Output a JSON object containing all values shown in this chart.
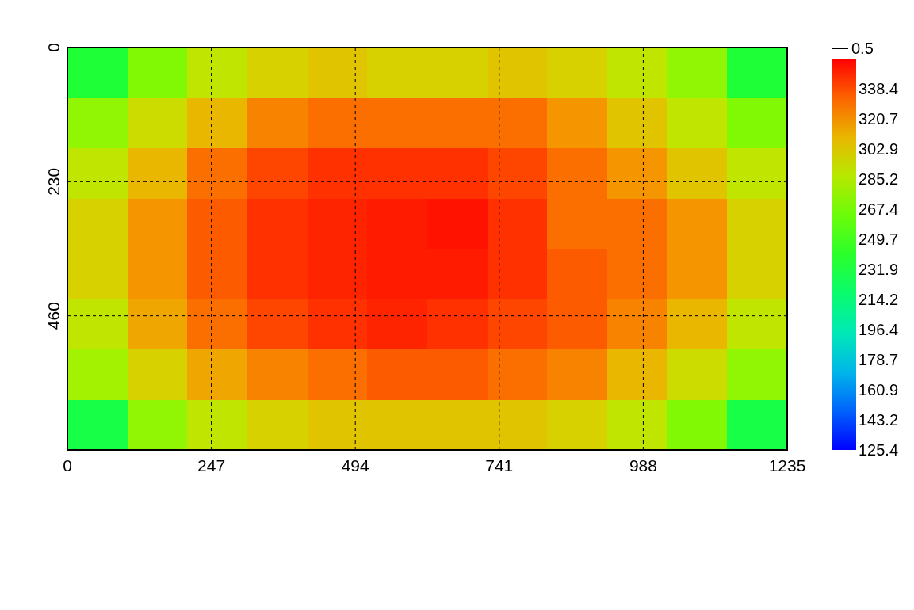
{
  "chart_data": {
    "type": "heatmap",
    "x": [
      51.5,
      154.4,
      257.3,
      360.2,
      463.1,
      566,
      669,
      771.9,
      874.8,
      977.7,
      1080.6,
      1183.5
    ],
    "y": [
      43.1,
      129.4,
      215.6,
      301.9,
      388.1,
      474.4,
      560.6,
      646.9
    ],
    "xlim": [
      0,
      1235
    ],
    "xticks": [
      0,
      247,
      494,
      741,
      988,
      1235
    ],
    "ylim": [
      690,
      0
    ],
    "yticks": [
      0,
      230,
      460
    ],
    "grid": true,
    "line_style": "dashed",
    "cells": [
      [
        235,
        270,
        290,
        300,
        305,
        300,
        300,
        305,
        300,
        290,
        275,
        235
      ],
      [
        275,
        295,
        310,
        325,
        330,
        330,
        330,
        330,
        320,
        305,
        290,
        270
      ],
      [
        290,
        310,
        330,
        340,
        345,
        345,
        345,
        340,
        330,
        320,
        305,
        290
      ],
      [
        300,
        320,
        335,
        345,
        348,
        350,
        352,
        345,
        330,
        330,
        320,
        300
      ],
      [
        300,
        320,
        335,
        345,
        348,
        350,
        350,
        345,
        335,
        330,
        320,
        300
      ],
      [
        290,
        315,
        330,
        340,
        345,
        348,
        345,
        340,
        335,
        325,
        310,
        290
      ],
      [
        280,
        300,
        315,
        325,
        330,
        335,
        335,
        330,
        325,
        310,
        295,
        275
      ],
      [
        230,
        275,
        290,
        300,
        305,
        305,
        305,
        305,
        300,
        290,
        270,
        230
      ]
    ],
    "clim": [
      125.4,
      356.1
    ],
    "cticks": [
      125.4,
      143.2,
      160.9,
      178.7,
      196.4,
      214.2,
      231.9,
      249.7,
      267.4,
      285.2,
      302.9,
      320.7,
      338.4
    ],
    "annotations": [
      "0.5"
    ]
  }
}
